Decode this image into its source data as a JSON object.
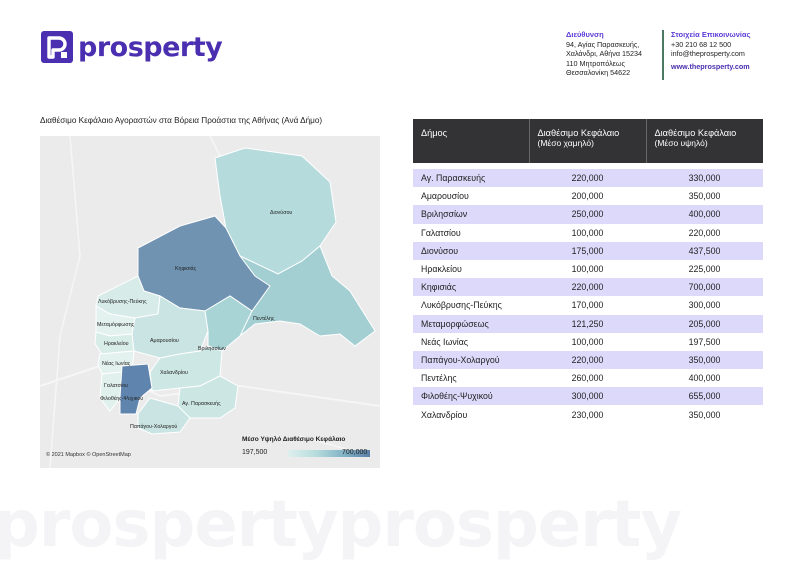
{
  "brand": {
    "name": "prosperty",
    "color": "#4a2fb0"
  },
  "address": {
    "title": "Διεύθυνση",
    "lines": [
      "94, Αγίας Παρασκευής,",
      "Χαλάνδρι, Αθήνα 15234",
      "110 Μητροπόλεως",
      "Θεσσαλονίκη 54622"
    ]
  },
  "contact": {
    "title": "Στοιχεία Επικοινωνίας",
    "phone": "+30 210 68 12 500",
    "email": "info@theprosperty.com",
    "website": "www.theprosperty.com"
  },
  "map": {
    "title": "Διαθέσιμο Κεφάλαιο Αγοραστών στα Βόρεια Προάστια της Αθήνας (Ανά Δήμο)",
    "credit": "© 2021 Mapbox © OpenStreetMap",
    "legend": {
      "title": "Μέσο Υψηλό Διαθέσιμο Κεφάλαιο",
      "min": "197,500",
      "max": "700,000"
    },
    "labels": {
      "dionysos": "Διονύσου",
      "kifisia": "Κηφισιάς",
      "penteli": "Πεντέλης",
      "lykovrysi": "Λυκόβρυσης-Πεύκης",
      "metamorfosi": "Μεταμόρφωσης",
      "irakleio": "Ηρακλείου",
      "amarousio": "Αμαρουσίου",
      "vrilissia": "Βριλησσίων",
      "nea_ionia": "Νέας Ιωνίας",
      "galatsi": "Γαλατσίου",
      "chalandri": "Χαλανδρίου",
      "filothei": "Φιλοθέης-Ψυχικού",
      "ag_paraskevi": "Αγ. Παρασκευής",
      "papagou": "Παπάγου-Χολαργού"
    }
  },
  "table": {
    "headers": {
      "municipality": "Δήμος",
      "low_title": "Διαθέσιμο Κεφάλαιο",
      "low_sub": "(Μέσο χαμηλό)",
      "high_title": "Διαθέσιμο Κεφάλαιο",
      "high_sub": "(Μέσο υψηλό)"
    },
    "rows": [
      {
        "name": "Αγ. Παρασκευής",
        "low": "220,000",
        "high": "330,000"
      },
      {
        "name": "Αμαρουσίου",
        "low": "200,000",
        "high": "350,000"
      },
      {
        "name": "Βριλησσίων",
        "low": "250,000",
        "high": "400,000"
      },
      {
        "name": "Γαλατσίου",
        "low": "100,000",
        "high": "220,000"
      },
      {
        "name": "Διονύσου",
        "low": "175,000",
        "high": "437,500"
      },
      {
        "name": "Ηρακλείου",
        "low": "100,000",
        "high": "225,000"
      },
      {
        "name": "Κηφισιάς",
        "low": "220,000",
        "high": "700,000"
      },
      {
        "name": "Λυκόβρυσης-Πεύκης",
        "low": "170,000",
        "high": "300,000"
      },
      {
        "name": "Μεταμορφώσεως",
        "low": "121,250",
        "high": "205,000"
      },
      {
        "name": "Νεάς Ιωνίας",
        "low": "100,000",
        "high": "197,500"
      },
      {
        "name": "Παπάγου-Χολαργού",
        "low": "220,000",
        "high": "350,000"
      },
      {
        "name": "Πεντέλης",
        "low": "260,000",
        "high": "400,000"
      },
      {
        "name": "Φιλοθέης-Ψυχικού",
        "low": "300,000",
        "high": "655,000"
      },
      {
        "name": "Χαλανδρίου",
        "low": "230,000",
        "high": "350,000"
      }
    ]
  },
  "watermark": "prospertyprosperty"
}
